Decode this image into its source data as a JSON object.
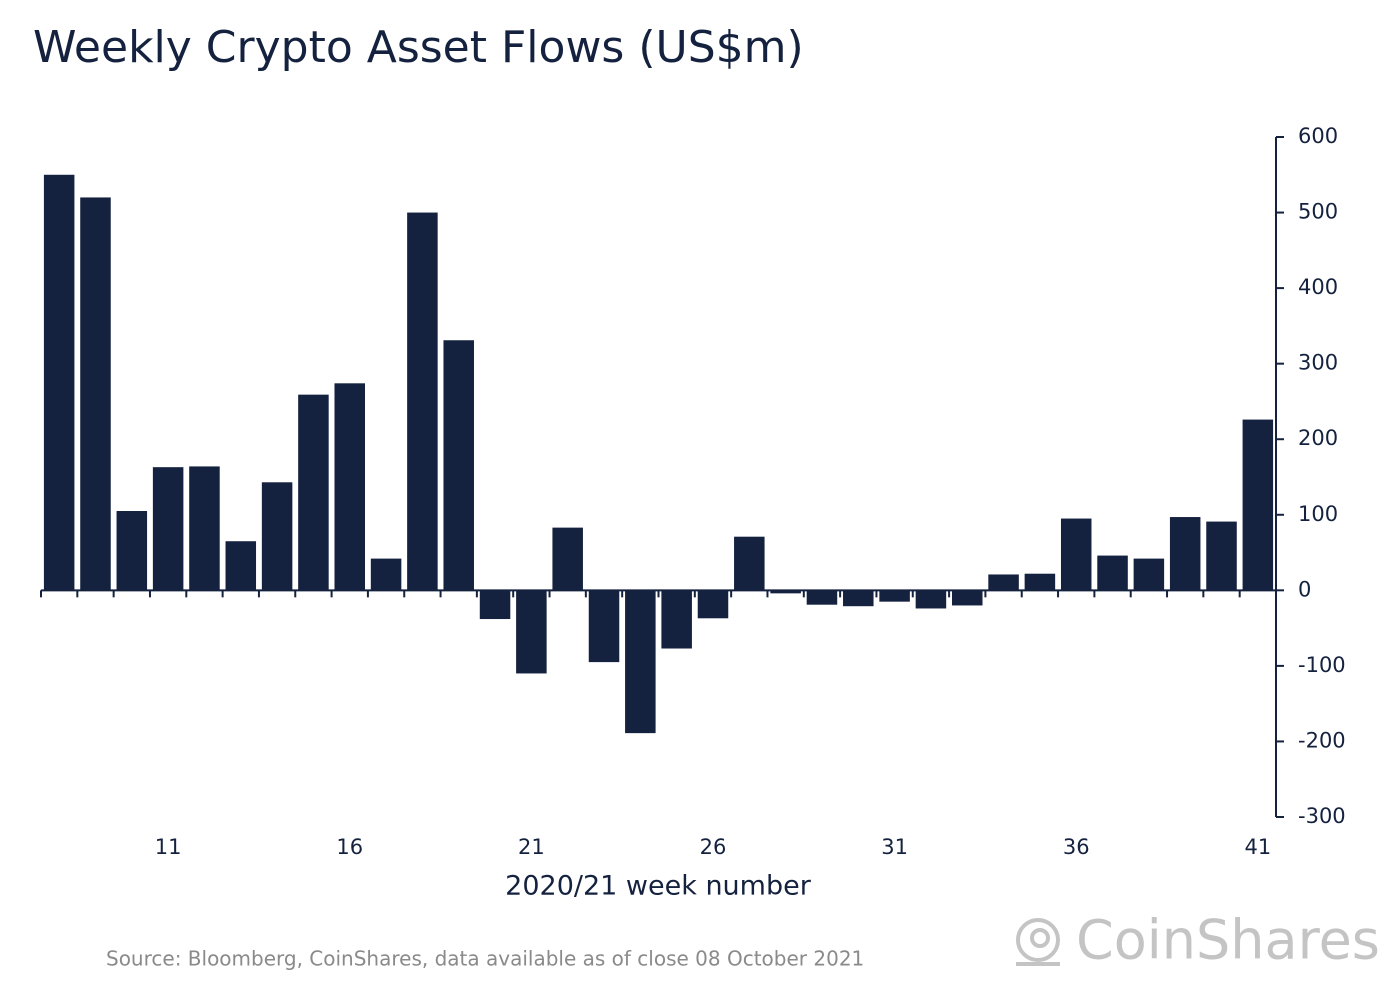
{
  "chart_data": {
    "type": "bar",
    "title": "Weekly Crypto Asset Flows (US$m)",
    "x_label": "2020/21 week number",
    "source": "Source: Bloomberg, CoinShares, data available as of close 08 October 2021",
    "logo": "CoinShares",
    "categories": [
      null,
      null,
      null,
      "11",
      null,
      null,
      null,
      null,
      "16",
      null,
      null,
      null,
      null,
      "21",
      null,
      null,
      null,
      null,
      "26",
      null,
      null,
      null,
      null,
      "31",
      null,
      null,
      null,
      null,
      "36",
      null,
      null,
      null,
      null,
      "41"
    ],
    "values": [
      550,
      520,
      105,
      163,
      164,
      65,
      143,
      259,
      274,
      42,
      500,
      331,
      -38,
      -110,
      83,
      -95,
      -189,
      -77,
      -37,
      71,
      -4,
      -19,
      -21,
      -15,
      -24,
      -20,
      21,
      22,
      95,
      46,
      42,
      97,
      91,
      226
    ],
    "color": "#14213f",
    "ylim": [
      -300,
      600
    ],
    "yticks": [
      -300,
      -200,
      -100,
      0,
      100,
      200,
      300,
      400,
      500,
      600
    ],
    "y_axis_side": "right",
    "grid": false
  }
}
